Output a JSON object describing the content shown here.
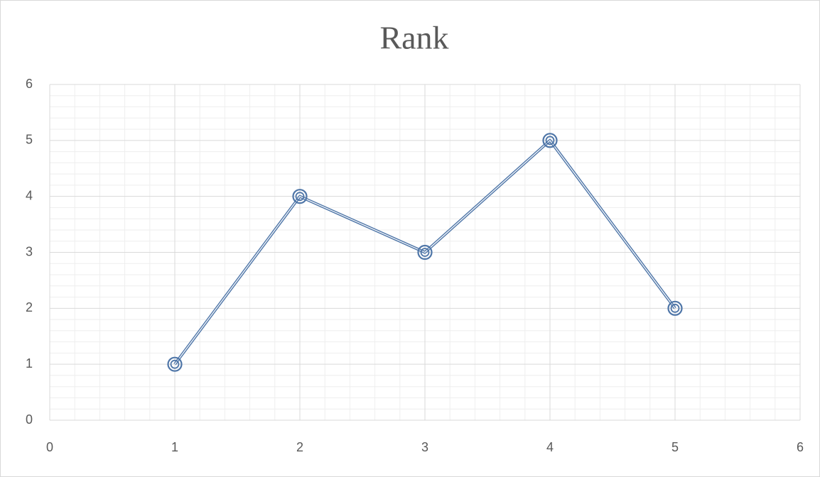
{
  "chart_data": {
    "type": "scatter_line",
    "title": "Rank",
    "x": [
      1,
      2,
      3,
      4,
      5
    ],
    "values": [
      1,
      4,
      3,
      5,
      2
    ],
    "color": "#4f76a8",
    "xlim": [
      0,
      6
    ],
    "xticks": [
      0,
      1,
      2,
      3,
      4,
      5,
      6
    ],
    "ylim": [
      0,
      6
    ],
    "yticks": [
      0,
      1,
      2,
      3,
      4,
      5,
      6
    ],
    "grid": true,
    "minor_divisions": 5
  }
}
